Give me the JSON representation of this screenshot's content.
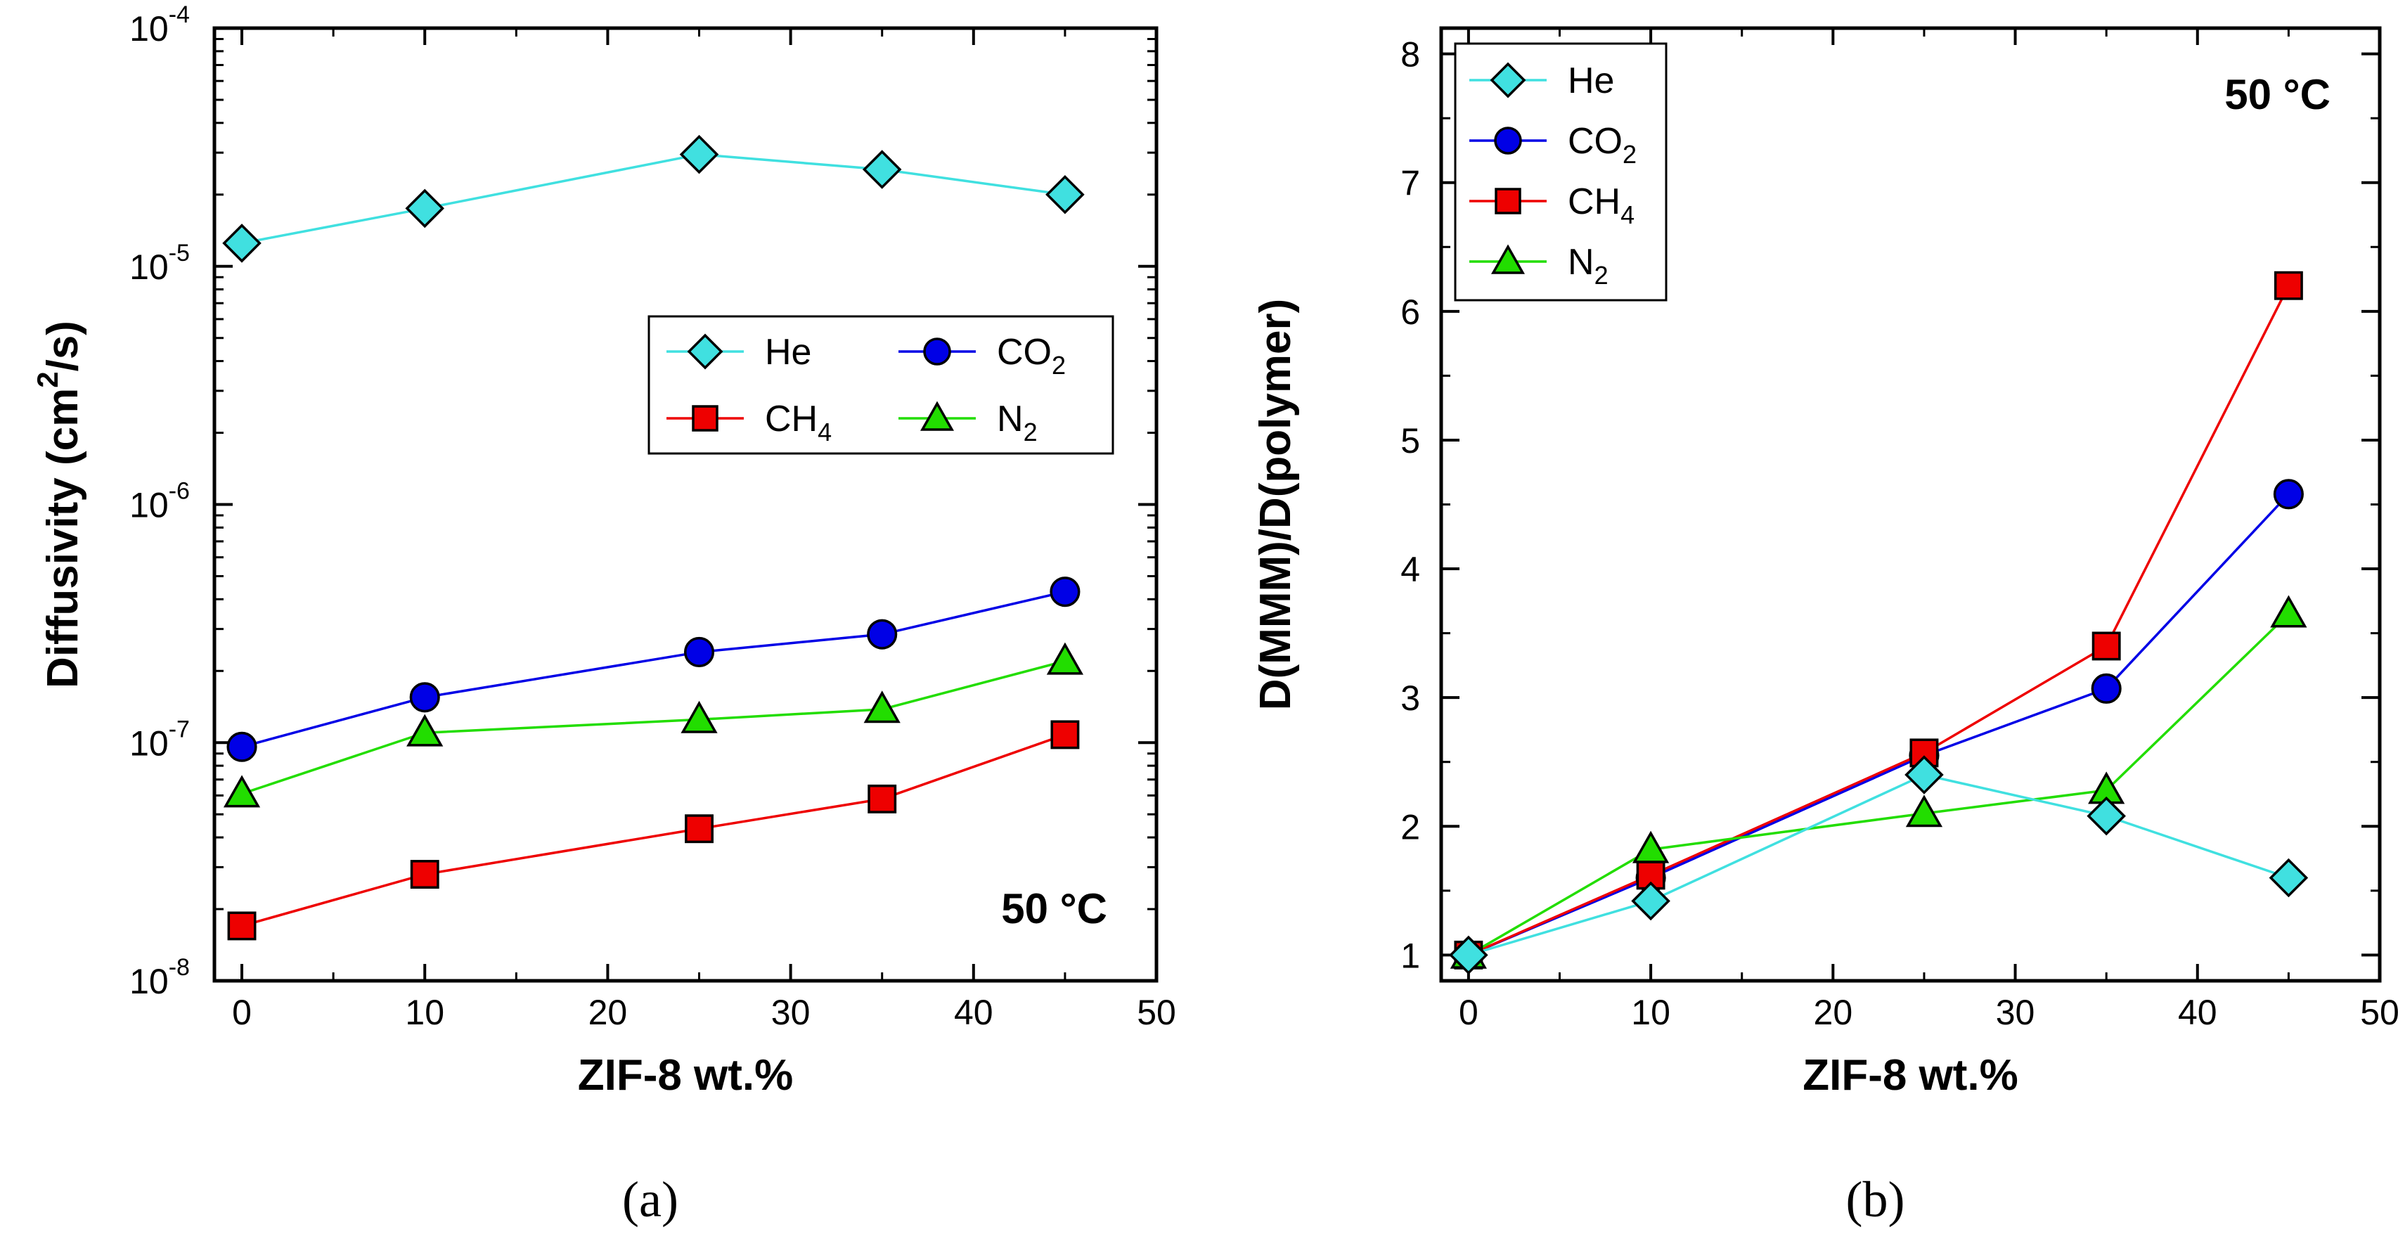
{
  "chart_data": [
    {
      "panel": "(a)",
      "type": "line",
      "xlabel": "ZIF-8 wt.%",
      "ylabel": "Diffusivity (cm²/s)",
      "ylabel_parts": {
        "main": "Diffusivity (cm",
        "sup": "2",
        "tail": "/s)"
      },
      "yscale": "log",
      "xlim": [
        -1.5,
        50
      ],
      "ylim": [
        1e-08,
        0.0001
      ],
      "xticks": [
        0,
        10,
        20,
        30,
        40,
        50
      ],
      "yticks": [
        {
          "value": 1e-08,
          "base": "10",
          "exp": "-8"
        },
        {
          "value": 1e-07,
          "base": "10",
          "exp": "-7"
        },
        {
          "value": 1e-06,
          "base": "10",
          "exp": "-6"
        },
        {
          "value": 1e-05,
          "base": "10",
          "exp": "-5"
        },
        {
          "value": 0.0001,
          "base": "10",
          "exp": "-4"
        }
      ],
      "annotation": "50 °C",
      "legend_placement": "upper-right",
      "legend_columns": 2,
      "x": [
        0,
        10,
        25,
        35,
        45
      ],
      "series": [
        {
          "name": "He",
          "label_main": "He",
          "label_sub": "",
          "color": "#40e0e0",
          "marker": "diamond",
          "values": [
            1.25e-05,
            1.75e-05,
            2.95e-05,
            2.55e-05,
            2e-05
          ]
        },
        {
          "name": "CO2",
          "label_main": "CO",
          "label_sub": "2",
          "color": "#0000e6",
          "marker": "circle",
          "values": [
            9.6e-08,
            1.55e-07,
            2.4e-07,
            2.85e-07,
            4.3e-07
          ]
        },
        {
          "name": "CH4",
          "label_main": "CH",
          "label_sub": "4",
          "color": "#ee0000",
          "marker": "square",
          "values": [
            1.7e-08,
            2.8e-08,
            4.35e-08,
            5.8e-08,
            1.08e-07
          ]
        },
        {
          "name": "N2",
          "label_main": "N",
          "label_sub": "2",
          "color": "#22dd00",
          "marker": "triangle",
          "values": [
            6.1e-08,
            1.1e-07,
            1.25e-07,
            1.38e-07,
            2.2e-07
          ]
        }
      ],
      "legend_order": [
        "He",
        "CO2",
        "CH4",
        "N2"
      ],
      "caption": "(a)"
    },
    {
      "panel": "(b)",
      "type": "line",
      "xlabel": "ZIF-8 wt.%",
      "ylabel": "D(MMM)/D(polymer)",
      "yscale": "linear",
      "xlim": [
        -1.5,
        50
      ],
      "ylim": [
        0.8,
        8.2
      ],
      "xticks": [
        0,
        10,
        20,
        30,
        40,
        50
      ],
      "yticks": [
        1,
        2,
        3,
        4,
        5,
        6,
        7,
        8
      ],
      "annotation": "50 °C",
      "legend_placement": "upper-left",
      "legend_columns": 1,
      "x": [
        0,
        10,
        25,
        35,
        45
      ],
      "series": [
        {
          "name": "CO2",
          "label_main": "CO",
          "label_sub": "2",
          "color": "#0000e6",
          "marker": "circle",
          "values": [
            1.0,
            1.6,
            2.55,
            3.07,
            4.58
          ]
        },
        {
          "name": "CH4",
          "label_main": "CH",
          "label_sub": "4",
          "color": "#ee0000",
          "marker": "square",
          "values": [
            1.0,
            1.62,
            2.57,
            3.4,
            6.2
          ]
        },
        {
          "name": "N2",
          "label_main": "N",
          "label_sub": "2",
          "color": "#22dd00",
          "marker": "triangle",
          "values": [
            1.0,
            1.82,
            2.1,
            2.28,
            3.65
          ]
        },
        {
          "name": "He",
          "label_main": "He",
          "label_sub": "",
          "color": "#40e0e0",
          "marker": "diamond",
          "values": [
            1.0,
            1.42,
            2.4,
            2.08,
            1.6
          ]
        }
      ],
      "legend_order": [
        "He",
        "CO2",
        "CH4",
        "N2"
      ],
      "caption": "(b)"
    }
  ]
}
